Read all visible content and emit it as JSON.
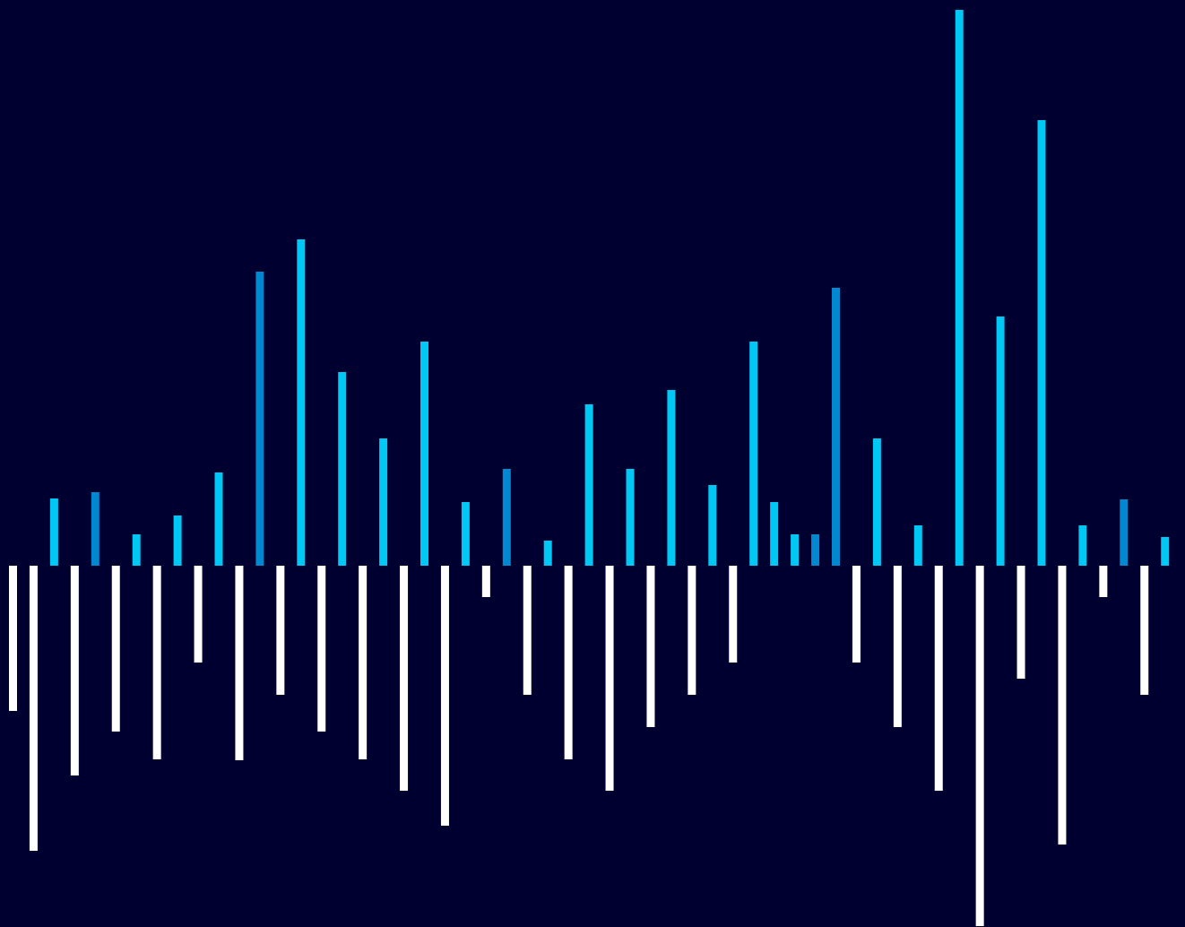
{
  "chart_data": {
    "type": "bar",
    "title": "",
    "xlabel": "",
    "ylabel": "",
    "grid": false,
    "legend": "none",
    "colors": {
      "background": "#000030",
      "positive": "#00C8F5",
      "negative": "#FFFFFF",
      "highlight": "#0288D1"
    },
    "series": [
      {
        "values": [
          -162,
          -318,
          75,
          -234,
          82,
          -185,
          35,
          -216,
          56,
          -108,
          104,
          -217,
          328,
          -144,
          364,
          -185,
          216,
          -216,
          142,
          -251,
          250,
          -290,
          71,
          -35,
          108,
          -144,
          28,
          -216,
          180,
          -251,
          108,
          -180,
          196,
          -144,
          90,
          -108,
          250,
          71,
          35,
          35,
          310,
          -108,
          142,
          -180,
          45,
          -251,
          620,
          -402,
          278,
          -126,
          497,
          -311,
          45,
          -35,
          74,
          -144,
          32
        ]
      }
    ],
    "highlighted_indices": [
      4,
      12,
      24,
      39,
      40,
      54
    ]
  }
}
